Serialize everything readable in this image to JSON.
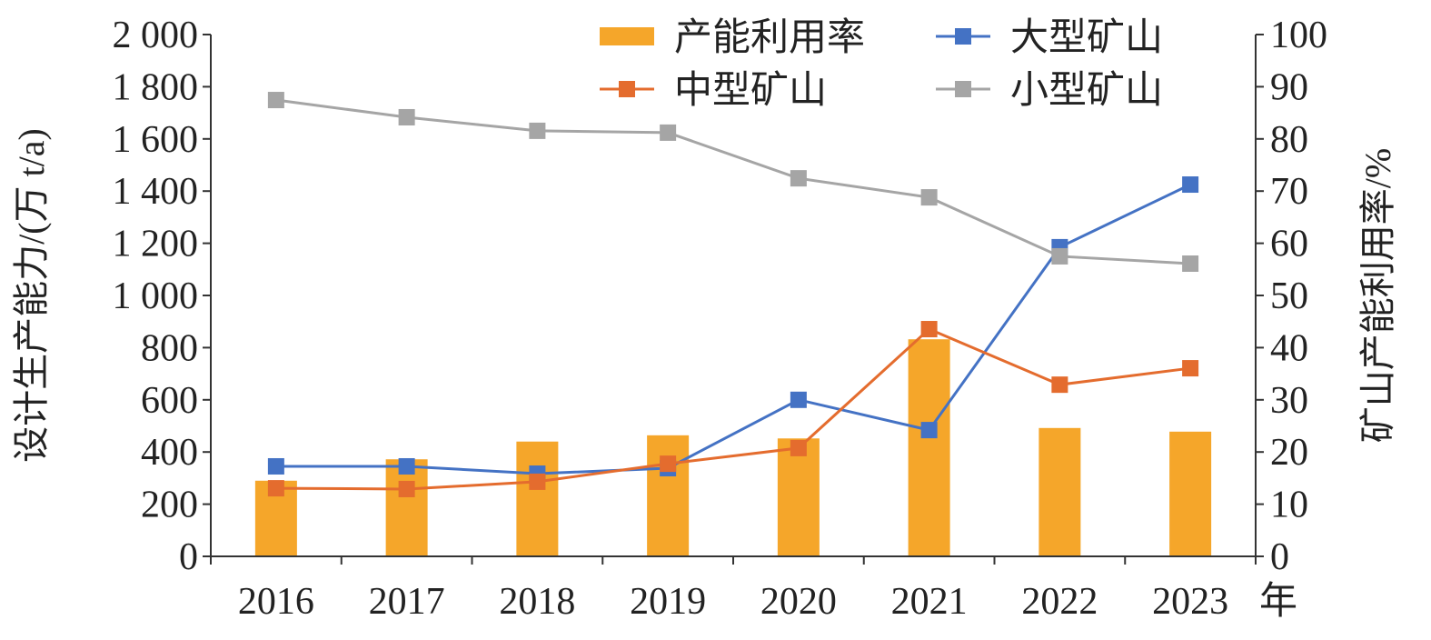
{
  "chart_data": {
    "type": "bar+line",
    "categories": [
      "2016",
      "2017",
      "2018",
      "2019",
      "2020",
      "2021",
      "2022",
      "2023"
    ],
    "x_unit_label": "年",
    "ylabel": "设计生产能力/(万 t/a)",
    "ylabel_right": "矿山产能利用率/%",
    "ylim": [
      0,
      2000
    ],
    "ylim_right": [
      0,
      100
    ],
    "yticks": [
      "0",
      "200",
      "400",
      "600",
      "800",
      "1 000",
      "1 200",
      "1 400",
      "1 600",
      "1 800",
      "2 000"
    ],
    "yticks_right": [
      "0",
      "10",
      "20",
      "30",
      "40",
      "50",
      "60",
      "70",
      "80",
      "90",
      "100"
    ],
    "grid": false,
    "legend_position": "top",
    "bars": {
      "name": "产能利用率",
      "axis": "right",
      "color": "#F5A62A",
      "values": [
        14.5,
        18.6,
        22.0,
        23.2,
        22.6,
        41.6,
        24.6,
        23.9
      ]
    },
    "series": [
      {
        "name": "大型矿山",
        "color": "#4472C4",
        "values": [
          345,
          345,
          317,
          338,
          600,
          484,
          1185,
          1425
        ]
      },
      {
        "name": "中型矿山",
        "color": "#E46C2E",
        "values": [
          261,
          258,
          286,
          355,
          415,
          871,
          658,
          721
        ]
      },
      {
        "name": "小型矿山",
        "color": "#A5A5A5",
        "values": [
          1749,
          1683,
          1631,
          1624,
          1449,
          1376,
          1150,
          1122
        ]
      }
    ]
  }
}
